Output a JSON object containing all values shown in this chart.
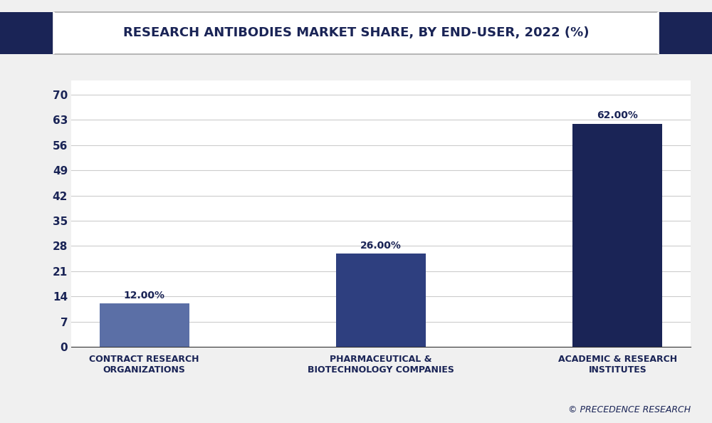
{
  "title": "RESEARCH ANTIBODIES MARKET SHARE, BY END-USER, 2022 (%)",
  "categories": [
    "CONTRACT RESEARCH\nORGANIZATIONS",
    "PHARMACEUTICAL &\nBIOTECHNOLOGY COMPANIES",
    "ACADEMIC & RESEARCH\nINSTITUTES"
  ],
  "values": [
    12.0,
    26.0,
    62.0
  ],
  "labels": [
    "12.00%",
    "26.00%",
    "62.00%"
  ],
  "bar_colors": [
    "#5b6fa6",
    "#2e3f7f",
    "#1a2456"
  ],
  "background_color": "#f0f0f0",
  "plot_bg_color": "#ffffff",
  "yticks": [
    0,
    7,
    14,
    21,
    28,
    35,
    42,
    49,
    56,
    63,
    70
  ],
  "ylim": [
    0,
    74
  ],
  "grid_color": "#cccccc",
  "title_color": "#1a2456",
  "tick_color": "#1a2456",
  "label_color": "#1a2456",
  "watermark": "© PRECEDENCE RESEARCH",
  "title_fontsize": 13,
  "tick_fontsize": 11,
  "bar_label_fontsize": 10,
  "cat_label_fontsize": 9,
  "corner_color": "#1a2456",
  "title_box_color": "#ffffff",
  "title_box_edge": "#aaaaaa"
}
